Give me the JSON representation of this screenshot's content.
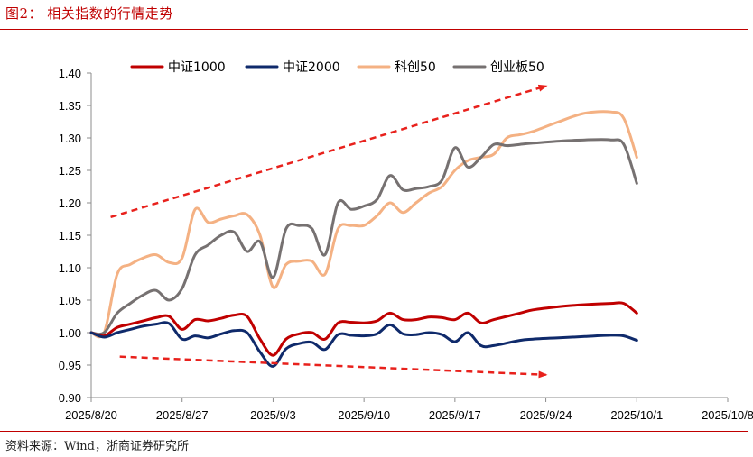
{
  "figure": {
    "title": "图2：  相关指数的行情走势",
    "source": "资料来源：Wind，浙商证券研究所"
  },
  "colors": {
    "csi1000": "#c00000",
    "csi2000": "#0f2a6b",
    "star50": "#f4b183",
    "chinext": "#767171",
    "arrow": "#e8211c",
    "rule": "#c00000"
  },
  "chart_data": {
    "type": "line",
    "title": "",
    "xlabel": "",
    "ylabel": "",
    "ylim": [
      0.9,
      1.4
    ],
    "yticks": [
      0.9,
      0.95,
      1.0,
      1.05,
      1.1,
      1.15,
      1.2,
      1.25,
      1.3,
      1.35,
      1.4
    ],
    "ytick_labels": [
      "0.90",
      "0.95",
      "1.00",
      "1.05",
      "1.10",
      "1.15",
      "1.20",
      "1.25",
      "1.30",
      "1.35",
      "1.40"
    ],
    "xlim": [
      0,
      49
    ],
    "xticks": [
      0,
      7,
      14,
      21,
      28,
      35,
      42,
      49
    ],
    "xtick_labels": [
      "2025/8/20",
      "2025/8/27",
      "2025/9/3",
      "2025/9/10",
      "2025/9/17",
      "2025/9/24",
      "2025/10/1",
      "2025/10/8"
    ],
    "legend_position": "top",
    "series": [
      {
        "name": "中证1000",
        "color_key": "csi1000",
        "points": [
          [
            0,
            1.0
          ],
          [
            1,
            0.995
          ],
          [
            2,
            1.008
          ],
          [
            3,
            1.013
          ],
          [
            4,
            1.018
          ],
          [
            5,
            1.023
          ],
          [
            6,
            1.025
          ],
          [
            7,
            1.005
          ],
          [
            8,
            1.02
          ],
          [
            9,
            1.018
          ],
          [
            10,
            1.022
          ],
          [
            11,
            1.027
          ],
          [
            12,
            1.025
          ],
          [
            13,
            0.99
          ],
          [
            14,
            0.965
          ],
          [
            15,
            0.99
          ],
          [
            16,
            0.998
          ],
          [
            17,
            1.0
          ],
          [
            18,
            0.99
          ],
          [
            19,
            1.015
          ],
          [
            20,
            1.016
          ],
          [
            21,
            1.015
          ],
          [
            22,
            1.018
          ],
          [
            23,
            1.03
          ],
          [
            24,
            1.02
          ],
          [
            25,
            1.02
          ],
          [
            26,
            1.024
          ],
          [
            27,
            1.023
          ],
          [
            28,
            1.02
          ],
          [
            29,
            1.03
          ],
          [
            30,
            1.015
          ],
          [
            31,
            1.02
          ],
          [
            33,
            1.03
          ],
          [
            34,
            1.035
          ],
          [
            36,
            1.04
          ],
          [
            38,
            1.043
          ],
          [
            40,
            1.045
          ],
          [
            41,
            1.045
          ],
          [
            42,
            1.03
          ]
        ]
      },
      {
        "name": "中证2000",
        "color_key": "csi2000",
        "points": [
          [
            0,
            1.0
          ],
          [
            1,
            0.993
          ],
          [
            2,
            1.0
          ],
          [
            3,
            1.005
          ],
          [
            4,
            1.01
          ],
          [
            5,
            1.013
          ],
          [
            6,
            1.014
          ],
          [
            7,
            0.99
          ],
          [
            8,
            0.995
          ],
          [
            9,
            0.992
          ],
          [
            10,
            0.998
          ],
          [
            11,
            1.003
          ],
          [
            12,
            1.0
          ],
          [
            13,
            0.97
          ],
          [
            14,
            0.948
          ],
          [
            15,
            0.975
          ],
          [
            16,
            0.983
          ],
          [
            17,
            0.985
          ],
          [
            18,
            0.974
          ],
          [
            19,
            0.997
          ],
          [
            20,
            0.996
          ],
          [
            21,
            0.995
          ],
          [
            22,
            0.998
          ],
          [
            23,
            1.012
          ],
          [
            24,
            0.998
          ],
          [
            25,
            0.997
          ],
          [
            26,
            1.0
          ],
          [
            27,
            0.997
          ],
          [
            28,
            0.986
          ],
          [
            29,
            1.0
          ],
          [
            30,
            0.98
          ],
          [
            31,
            0.98
          ],
          [
            33,
            0.988
          ],
          [
            34,
            0.99
          ],
          [
            36,
            0.992
          ],
          [
            38,
            0.994
          ],
          [
            40,
            0.996
          ],
          [
            41,
            0.995
          ],
          [
            42,
            0.988
          ]
        ]
      },
      {
        "name": "科创50",
        "color_key": "star50",
        "points": [
          [
            0,
            1.0
          ],
          [
            1,
            1.0
          ],
          [
            2,
            1.09
          ],
          [
            3,
            1.105
          ],
          [
            4,
            1.115
          ],
          [
            5,
            1.12
          ],
          [
            6,
            1.108
          ],
          [
            7,
            1.115
          ],
          [
            8,
            1.19
          ],
          [
            9,
            1.17
          ],
          [
            10,
            1.175
          ],
          [
            11,
            1.18
          ],
          [
            12,
            1.182
          ],
          [
            13,
            1.15
          ],
          [
            14,
            1.07
          ],
          [
            15,
            1.105
          ],
          [
            16,
            1.11
          ],
          [
            17,
            1.11
          ],
          [
            18,
            1.09
          ],
          [
            19,
            1.16
          ],
          [
            20,
            1.165
          ],
          [
            21,
            1.165
          ],
          [
            22,
            1.18
          ],
          [
            23,
            1.2
          ],
          [
            24,
            1.185
          ],
          [
            25,
            1.2
          ],
          [
            26,
            1.215
          ],
          [
            27,
            1.225
          ],
          [
            28,
            1.25
          ],
          [
            29,
            1.265
          ],
          [
            30,
            1.27
          ],
          [
            31,
            1.275
          ],
          [
            32,
            1.3
          ],
          [
            33,
            1.305
          ],
          [
            34,
            1.31
          ],
          [
            36,
            1.325
          ],
          [
            38,
            1.338
          ],
          [
            40,
            1.34
          ],
          [
            41,
            1.33
          ],
          [
            42,
            1.27
          ]
        ]
      },
      {
        "name": "创业板50",
        "color_key": "chinext",
        "points": [
          [
            0,
            1.0
          ],
          [
            1,
            1.0
          ],
          [
            2,
            1.03
          ],
          [
            3,
            1.045
          ],
          [
            4,
            1.058
          ],
          [
            5,
            1.065
          ],
          [
            6,
            1.05
          ],
          [
            7,
            1.068
          ],
          [
            8,
            1.12
          ],
          [
            9,
            1.135
          ],
          [
            10,
            1.15
          ],
          [
            11,
            1.155
          ],
          [
            12,
            1.125
          ],
          [
            13,
            1.14
          ],
          [
            14,
            1.085
          ],
          [
            15,
            1.16
          ],
          [
            16,
            1.165
          ],
          [
            17,
            1.16
          ],
          [
            18,
            1.12
          ],
          [
            19,
            1.2
          ],
          [
            20,
            1.19
          ],
          [
            21,
            1.195
          ],
          [
            22,
            1.205
          ],
          [
            23,
            1.242
          ],
          [
            24,
            1.22
          ],
          [
            25,
            1.222
          ],
          [
            26,
            1.225
          ],
          [
            27,
            1.235
          ],
          [
            28,
            1.285
          ],
          [
            29,
            1.255
          ],
          [
            30,
            1.27
          ],
          [
            31,
            1.29
          ],
          [
            32,
            1.288
          ],
          [
            33,
            1.29
          ],
          [
            34,
            1.292
          ],
          [
            36,
            1.295
          ],
          [
            38,
            1.297
          ],
          [
            40,
            1.297
          ],
          [
            41,
            1.29
          ],
          [
            42,
            1.23
          ]
        ]
      }
    ],
    "annotations": [
      {
        "type": "arrow",
        "style": "dashed",
        "from": [
          1.5,
          1.178
        ],
        "to": [
          35,
          1.38
        ]
      },
      {
        "type": "arrow",
        "style": "dashed",
        "from": [
          2.2,
          0.963
        ],
        "to": [
          35,
          0.935
        ]
      }
    ]
  }
}
